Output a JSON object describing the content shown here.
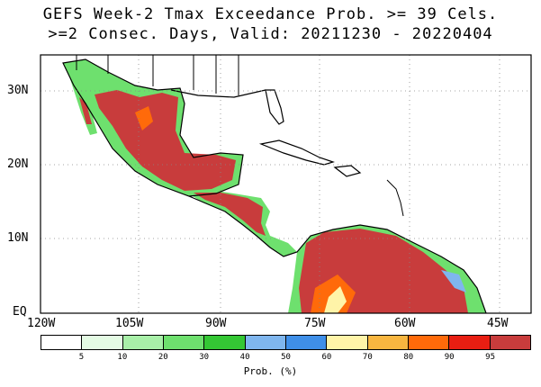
{
  "title": {
    "line1": "GEFS Week-2 Tmax Exceedance Prob. >= 39 Cels.",
    "line2": ">=2 Consec. Days, Valid: 20211230 - 20220404"
  },
  "axes": {
    "y_labels": [
      "30N",
      "20N",
      "10N",
      "EQ"
    ],
    "x_labels": [
      "120W",
      "105W",
      "90W",
      "75W",
      "60W",
      "45W"
    ]
  },
  "colorbar": {
    "label": "Prob. (%)",
    "ticks": [
      "5",
      "10",
      "20",
      "30",
      "40",
      "50",
      "60",
      "70",
      "80",
      "90",
      "95"
    ],
    "colors": [
      "#ffffff",
      "#e4fbe4",
      "#a8efa8",
      "#6ee06e",
      "#34c734",
      "#7fb6ee",
      "#3f8fe8",
      "#fff4a8",
      "#f8b640",
      "#ff6a0a",
      "#e81e12",
      "#c83c3c"
    ]
  }
}
